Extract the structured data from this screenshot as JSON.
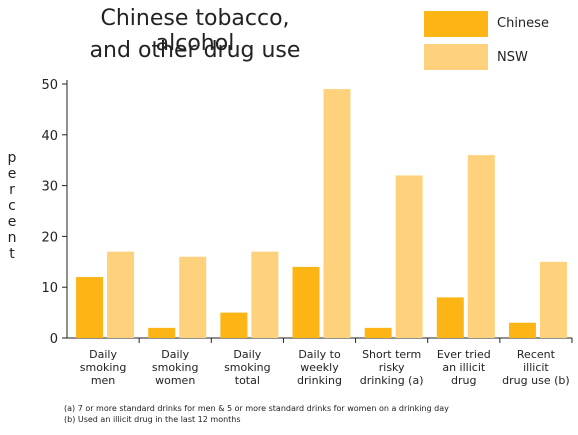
{
  "chart_data": {
    "type": "bar",
    "title_lines": [
      "Chinese tobacco, alcohol",
      "and other drug use"
    ],
    "ylabel": "percent",
    "ylim": [
      0,
      50
    ],
    "yticks": [
      0,
      10,
      20,
      30,
      40,
      50
    ],
    "categories": [
      [
        "Daily",
        "smoking",
        "men"
      ],
      [
        "Daily",
        "smoking",
        "women"
      ],
      [
        "Daily",
        "smoking",
        "total"
      ],
      [
        "Daily to",
        "weekly",
        "drinking"
      ],
      [
        "Short term",
        "risky",
        "drinking (a)"
      ],
      [
        "Ever tried",
        "an illicit",
        "drug"
      ],
      [
        "Recent",
        "illicit",
        "drug use (b)"
      ]
    ],
    "series": [
      {
        "name": "Chinese",
        "color": "#FDB515",
        "values": [
          12,
          2,
          5,
          14,
          2,
          8,
          3
        ]
      },
      {
        "name": "NSW",
        "color": "#FED17D",
        "values": [
          17,
          16,
          17,
          49,
          32,
          36,
          15
        ]
      }
    ],
    "legend_position": "top-right",
    "grid": false,
    "footnotes": [
      "(a) 7 or more standard drinks for men & 5 or more standard drinks for women on a drinking day",
      "(b) Used an illicit drug in the last 12 months"
    ]
  }
}
